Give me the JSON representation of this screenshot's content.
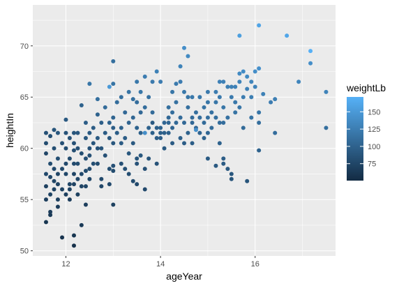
{
  "chart_data": {
    "type": "scatter",
    "xlabel": "ageYear",
    "ylabel": "heightIn",
    "xlim": [
      11.3,
      17.7
    ],
    "ylim": [
      49.5,
      74
    ],
    "x_ticks": [
      12,
      14,
      16
    ],
    "y_ticks": [
      50,
      55,
      60,
      65,
      70
    ],
    "grid": true,
    "panel_background": "#ebebeb",
    "grid_color": "#ffffff",
    "color_scale": {
      "title": "weightLb",
      "low_color": "#132b43",
      "high_color": "#56b1f7",
      "range": [
        50.5,
        171.5
      ],
      "breaks": [
        75,
        100,
        125,
        150
      ]
    },
    "legend_position": "right",
    "points": [
      {
        "x": 11.58,
        "y": 61.5,
        "w": 85
      },
      {
        "x": 11.58,
        "y": 60.5,
        "w": 80
      },
      {
        "x": 11.58,
        "y": 59.5,
        "w": 75
      },
      {
        "x": 11.58,
        "y": 57.5,
        "w": 78
      },
      {
        "x": 11.58,
        "y": 56.3,
        "w": 70
      },
      {
        "x": 11.58,
        "y": 55.0,
        "w": 68
      },
      {
        "x": 11.58,
        "y": 52.8,
        "w": 60
      },
      {
        "x": 11.67,
        "y": 61.2,
        "w": 82
      },
      {
        "x": 11.67,
        "y": 58.5,
        "w": 80
      },
      {
        "x": 11.67,
        "y": 57.2,
        "w": 76
      },
      {
        "x": 11.67,
        "y": 55.5,
        "w": 72
      },
      {
        "x": 11.67,
        "y": 53.8,
        "w": 66
      },
      {
        "x": 11.67,
        "y": 53.5,
        "w": 64
      },
      {
        "x": 11.75,
        "y": 61.8,
        "w": 88
      },
      {
        "x": 11.75,
        "y": 60.0,
        "w": 82
      },
      {
        "x": 11.75,
        "y": 58.0,
        "w": 78
      },
      {
        "x": 11.75,
        "y": 56.8,
        "w": 74
      },
      {
        "x": 11.75,
        "y": 56.0,
        "w": 72
      },
      {
        "x": 11.83,
        "y": 61.5,
        "w": 90
      },
      {
        "x": 11.83,
        "y": 59.0,
        "w": 82
      },
      {
        "x": 11.83,
        "y": 57.5,
        "w": 75
      },
      {
        "x": 11.83,
        "y": 56.5,
        "w": 72
      },
      {
        "x": 11.83,
        "y": 55.0,
        "w": 70
      },
      {
        "x": 11.83,
        "y": 54.3,
        "w": 66
      },
      {
        "x": 11.92,
        "y": 60.5,
        "w": 84
      },
      {
        "x": 11.92,
        "y": 58.0,
        "w": 78
      },
      {
        "x": 11.92,
        "y": 56.0,
        "w": 72
      },
      {
        "x": 11.92,
        "y": 51.3,
        "w": 58
      },
      {
        "x": 12.0,
        "y": 62.8,
        "w": 92
      },
      {
        "x": 12.0,
        "y": 61.5,
        "w": 86
      },
      {
        "x": 12.0,
        "y": 60.0,
        "w": 82
      },
      {
        "x": 12.0,
        "y": 58.5,
        "w": 78
      },
      {
        "x": 12.0,
        "y": 57.5,
        "w": 76
      },
      {
        "x": 12.0,
        "y": 55.5,
        "w": 70
      },
      {
        "x": 12.08,
        "y": 61.0,
        "w": 86
      },
      {
        "x": 12.08,
        "y": 59.0,
        "w": 80
      },
      {
        "x": 12.08,
        "y": 56.5,
        "w": 74
      },
      {
        "x": 12.08,
        "y": 56.0,
        "w": 72
      },
      {
        "x": 12.08,
        "y": 55.0,
        "w": 68
      },
      {
        "x": 12.17,
        "y": 61.5,
        "w": 88
      },
      {
        "x": 12.17,
        "y": 60.5,
        "w": 84
      },
      {
        "x": 12.17,
        "y": 59.8,
        "w": 82
      },
      {
        "x": 12.17,
        "y": 58.5,
        "w": 78
      },
      {
        "x": 12.17,
        "y": 57.5,
        "w": 74
      },
      {
        "x": 12.17,
        "y": 56.5,
        "w": 72
      },
      {
        "x": 12.17,
        "y": 51.5,
        "w": 60
      },
      {
        "x": 12.17,
        "y": 50.5,
        "w": 56
      },
      {
        "x": 12.25,
        "y": 61.5,
        "w": 90
      },
      {
        "x": 12.25,
        "y": 60.0,
        "w": 84
      },
      {
        "x": 12.25,
        "y": 58.5,
        "w": 80
      },
      {
        "x": 12.25,
        "y": 57.0,
        "w": 76
      },
      {
        "x": 12.25,
        "y": 55.5,
        "w": 70
      },
      {
        "x": 12.33,
        "y": 64.2,
        "w": 100
      },
      {
        "x": 12.33,
        "y": 59.5,
        "w": 82
      },
      {
        "x": 12.33,
        "y": 57.5,
        "w": 78
      },
      {
        "x": 12.33,
        "y": 56.3,
        "w": 74
      },
      {
        "x": 12.33,
        "y": 52.5,
        "w": 64
      },
      {
        "x": 12.42,
        "y": 62.5,
        "w": 96
      },
      {
        "x": 12.42,
        "y": 61.0,
        "w": 90
      },
      {
        "x": 12.42,
        "y": 59.0,
        "w": 84
      },
      {
        "x": 12.42,
        "y": 57.8,
        "w": 80
      },
      {
        "x": 12.42,
        "y": 56.3,
        "w": 74
      },
      {
        "x": 12.42,
        "y": 54.5,
        "w": 68
      },
      {
        "x": 12.5,
        "y": 66.3,
        "w": 118
      },
      {
        "x": 12.5,
        "y": 61.5,
        "w": 92
      },
      {
        "x": 12.5,
        "y": 60.0,
        "w": 86
      },
      {
        "x": 12.5,
        "y": 59.3,
        "w": 84
      },
      {
        "x": 12.5,
        "y": 58.0,
        "w": 80
      },
      {
        "x": 12.5,
        "y": 57.0,
        "w": 76
      },
      {
        "x": 12.58,
        "y": 62.0,
        "w": 95
      },
      {
        "x": 12.58,
        "y": 60.5,
        "w": 88
      },
      {
        "x": 12.58,
        "y": 58.5,
        "w": 82
      },
      {
        "x": 12.67,
        "y": 64.8,
        "w": 112
      },
      {
        "x": 12.67,
        "y": 63.3,
        "w": 100
      },
      {
        "x": 12.67,
        "y": 61.0,
        "w": 92
      },
      {
        "x": 12.67,
        "y": 60.0,
        "w": 86
      },
      {
        "x": 12.67,
        "y": 58.5,
        "w": 80
      },
      {
        "x": 12.75,
        "y": 62.5,
        "w": 96
      },
      {
        "x": 12.75,
        "y": 60.0,
        "w": 88
      },
      {
        "x": 12.75,
        "y": 57.0,
        "w": 78
      },
      {
        "x": 12.75,
        "y": 56.3,
        "w": 76
      },
      {
        "x": 12.83,
        "y": 64.0,
        "w": 108
      },
      {
        "x": 12.83,
        "y": 61.5,
        "w": 94
      },
      {
        "x": 12.83,
        "y": 59.3,
        "w": 84
      },
      {
        "x": 12.92,
        "y": 66.0,
        "w": 150
      },
      {
        "x": 12.92,
        "y": 62.5,
        "w": 100
      },
      {
        "x": 12.92,
        "y": 61.0,
        "w": 92
      },
      {
        "x": 12.92,
        "y": 58.0,
        "w": 82
      },
      {
        "x": 12.92,
        "y": 56.5,
        "w": 78
      },
      {
        "x": 13.0,
        "y": 68.5,
        "w": 112
      },
      {
        "x": 13.0,
        "y": 66.3,
        "w": 116
      },
      {
        "x": 13.0,
        "y": 63.0,
        "w": 102
      },
      {
        "x": 13.0,
        "y": 62.0,
        "w": 96
      },
      {
        "x": 13.0,
        "y": 60.5,
        "w": 90
      },
      {
        "x": 13.0,
        "y": 58.3,
        "w": 84
      },
      {
        "x": 13.0,
        "y": 57.8,
        "w": 80
      },
      {
        "x": 13.0,
        "y": 54.5,
        "w": 70
      },
      {
        "x": 13.08,
        "y": 64.5,
        "w": 110
      },
      {
        "x": 13.08,
        "y": 61.5,
        "w": 96
      },
      {
        "x": 13.17,
        "y": 65.0,
        "w": 112
      },
      {
        "x": 13.17,
        "y": 62.0,
        "w": 100
      },
      {
        "x": 13.17,
        "y": 60.5,
        "w": 94
      },
      {
        "x": 13.17,
        "y": 58.5,
        "w": 84
      },
      {
        "x": 13.25,
        "y": 63.5,
        "w": 106
      },
      {
        "x": 13.25,
        "y": 61.0,
        "w": 96
      },
      {
        "x": 13.25,
        "y": 58.0,
        "w": 84
      },
      {
        "x": 13.33,
        "y": 65.5,
        "w": 116
      },
      {
        "x": 13.33,
        "y": 62.5,
        "w": 102
      },
      {
        "x": 13.33,
        "y": 59.5,
        "w": 90
      },
      {
        "x": 13.33,
        "y": 57.5,
        "w": 82
      },
      {
        "x": 13.42,
        "y": 64.8,
        "w": 112
      },
      {
        "x": 13.42,
        "y": 63.0,
        "w": 104
      },
      {
        "x": 13.42,
        "y": 60.5,
        "w": 92
      },
      {
        "x": 13.42,
        "y": 56.8,
        "w": 80
      },
      {
        "x": 13.5,
        "y": 66.5,
        "w": 120
      },
      {
        "x": 13.5,
        "y": 64.5,
        "w": 110
      },
      {
        "x": 13.5,
        "y": 62.0,
        "w": 100
      },
      {
        "x": 13.5,
        "y": 59.0,
        "w": 88
      },
      {
        "x": 13.5,
        "y": 58.5,
        "w": 86
      },
      {
        "x": 13.5,
        "y": 56.5,
        "w": 78
      },
      {
        "x": 13.58,
        "y": 65.5,
        "w": 118
      },
      {
        "x": 13.58,
        "y": 63.5,
        "w": 106
      },
      {
        "x": 13.58,
        "y": 61.5,
        "w": 98
      },
      {
        "x": 13.58,
        "y": 59.3,
        "w": 90
      },
      {
        "x": 13.67,
        "y": 67.0,
        "w": 124
      },
      {
        "x": 13.67,
        "y": 64.0,
        "w": 110
      },
      {
        "x": 13.67,
        "y": 61.5,
        "w": 140
      },
      {
        "x": 13.67,
        "y": 58.0,
        "w": 84
      },
      {
        "x": 13.67,
        "y": 56.0,
        "w": 78
      },
      {
        "x": 13.75,
        "y": 65.0,
        "w": 114
      },
      {
        "x": 13.75,
        "y": 62.0,
        "w": 100
      },
      {
        "x": 13.75,
        "y": 59.0,
        "w": 88
      },
      {
        "x": 13.83,
        "y": 66.5,
        "w": 122
      },
      {
        "x": 13.83,
        "y": 63.5,
        "w": 108
      },
      {
        "x": 13.83,
        "y": 62.5,
        "w": 92
      },
      {
        "x": 13.83,
        "y": 61.5,
        "w": 98
      },
      {
        "x": 13.92,
        "y": 67.5,
        "w": 128
      },
      {
        "x": 13.92,
        "y": 62.0,
        "w": 98
      },
      {
        "x": 13.92,
        "y": 61.0,
        "w": 96
      },
      {
        "x": 13.92,
        "y": 58.5,
        "w": 86
      },
      {
        "x": 14.0,
        "y": 66.5,
        "w": 124
      },
      {
        "x": 14.0,
        "y": 62.0,
        "w": 100
      },
      {
        "x": 14.0,
        "y": 61.5,
        "w": 98
      },
      {
        "x": 14.0,
        "y": 61.0,
        "w": 96
      },
      {
        "x": 14.08,
        "y": 62.5,
        "w": 104
      },
      {
        "x": 14.08,
        "y": 61.5,
        "w": 98
      },
      {
        "x": 14.08,
        "y": 60.0,
        "w": 92
      },
      {
        "x": 14.17,
        "y": 64.0,
        "w": 112
      },
      {
        "x": 14.17,
        "y": 63.0,
        "w": 106
      },
      {
        "x": 14.17,
        "y": 62.5,
        "w": 104
      },
      {
        "x": 14.17,
        "y": 61.5,
        "w": 98
      },
      {
        "x": 14.25,
        "y": 65.5,
        "w": 118
      },
      {
        "x": 14.25,
        "y": 63.5,
        "w": 110
      },
      {
        "x": 14.25,
        "y": 62.0,
        "w": 102
      },
      {
        "x": 14.25,
        "y": 60.5,
        "w": 94
      },
      {
        "x": 14.33,
        "y": 66.3,
        "w": 122
      },
      {
        "x": 14.33,
        "y": 64.5,
        "w": 114
      },
      {
        "x": 14.33,
        "y": 62.5,
        "w": 106
      },
      {
        "x": 14.42,
        "y": 68.0,
        "w": 130
      },
      {
        "x": 14.42,
        "y": 66.5,
        "w": 124
      },
      {
        "x": 14.42,
        "y": 63.0,
        "w": 108
      },
      {
        "x": 14.42,
        "y": 61.0,
        "w": 98
      },
      {
        "x": 14.5,
        "y": 69.8,
        "w": 140
      },
      {
        "x": 14.5,
        "y": 65.5,
        "w": 120
      },
      {
        "x": 14.5,
        "y": 62.5,
        "w": 106
      },
      {
        "x": 14.5,
        "y": 60.5,
        "w": 96
      },
      {
        "x": 14.58,
        "y": 69.0,
        "w": 136
      },
      {
        "x": 14.58,
        "y": 65.0,
        "w": 118
      },
      {
        "x": 14.58,
        "y": 64.0,
        "w": 112
      },
      {
        "x": 14.58,
        "y": 61.5,
        "w": 100
      },
      {
        "x": 14.67,
        "y": 65.0,
        "w": 120
      },
      {
        "x": 14.67,
        "y": 63.0,
        "w": 108
      },
      {
        "x": 14.67,
        "y": 62.5,
        "w": 106
      },
      {
        "x": 14.67,
        "y": 60.5,
        "w": 96
      },
      {
        "x": 14.75,
        "y": 62.0,
        "w": 104
      },
      {
        "x": 14.75,
        "y": 61.8,
        "w": 142
      },
      {
        "x": 14.75,
        "y": 63.5,
        "w": 112
      },
      {
        "x": 14.83,
        "y": 65.0,
        "w": 120
      },
      {
        "x": 14.83,
        "y": 63.0,
        "w": 110
      },
      {
        "x": 14.83,
        "y": 61.5,
        "w": 102
      },
      {
        "x": 14.92,
        "y": 64.0,
        "w": 116
      },
      {
        "x": 14.92,
        "y": 62.5,
        "w": 108
      },
      {
        "x": 14.92,
        "y": 61.0,
        "w": 100
      },
      {
        "x": 15.0,
        "y": 65.5,
        "w": 122
      },
      {
        "x": 15.0,
        "y": 64.5,
        "w": 118
      },
      {
        "x": 15.0,
        "y": 63.0,
        "w": 112
      },
      {
        "x": 15.0,
        "y": 61.5,
        "w": 104
      },
      {
        "x": 15.0,
        "y": 59.0,
        "w": 94
      },
      {
        "x": 15.08,
        "y": 63.5,
        "w": 114
      },
      {
        "x": 15.08,
        "y": 62.0,
        "w": 108
      },
      {
        "x": 15.17,
        "y": 65.5,
        "w": 124
      },
      {
        "x": 15.17,
        "y": 64.5,
        "w": 118
      },
      {
        "x": 15.17,
        "y": 63.0,
        "w": 112
      },
      {
        "x": 15.17,
        "y": 58.3,
        "w": 92
      },
      {
        "x": 15.25,
        "y": 66.5,
        "w": 128
      },
      {
        "x": 15.25,
        "y": 65.0,
        "w": 122
      },
      {
        "x": 15.25,
        "y": 62.5,
        "w": 110
      },
      {
        "x": 15.25,
        "y": 60.5,
        "w": 100
      },
      {
        "x": 15.33,
        "y": 66.5,
        "w": 128
      },
      {
        "x": 15.33,
        "y": 64.0,
        "w": 118
      },
      {
        "x": 15.33,
        "y": 62.5,
        "w": 110
      },
      {
        "x": 15.33,
        "y": 59.0,
        "w": 96
      },
      {
        "x": 15.33,
        "y": 58.5,
        "w": 94
      },
      {
        "x": 15.42,
        "y": 66.0,
        "w": 126
      },
      {
        "x": 15.42,
        "y": 63.0,
        "w": 114
      },
      {
        "x": 15.42,
        "y": 58.0,
        "w": 92
      },
      {
        "x": 15.5,
        "y": 66.0,
        "w": 128
      },
      {
        "x": 15.5,
        "y": 65.0,
        "w": 122
      },
      {
        "x": 15.5,
        "y": 57.5,
        "w": 90
      },
      {
        "x": 15.5,
        "y": 57.0,
        "w": 88
      },
      {
        "x": 15.58,
        "y": 66.0,
        "w": 128
      },
      {
        "x": 15.58,
        "y": 64.5,
        "w": 120
      },
      {
        "x": 15.58,
        "y": 63.5,
        "w": 116
      },
      {
        "x": 15.67,
        "y": 71.0,
        "w": 155
      },
      {
        "x": 15.67,
        "y": 67.3,
        "w": 136
      },
      {
        "x": 15.67,
        "y": 66.5,
        "w": 130
      },
      {
        "x": 15.67,
        "y": 64.0,
        "w": 118
      },
      {
        "x": 15.75,
        "y": 67.5,
        "w": 138
      },
      {
        "x": 15.75,
        "y": 65.0,
        "w": 124
      },
      {
        "x": 15.75,
        "y": 62.0,
        "w": 108
      },
      {
        "x": 15.83,
        "y": 67.0,
        "w": 136
      },
      {
        "x": 15.83,
        "y": 65.8,
        "w": 128
      },
      {
        "x": 15.83,
        "y": 56.8,
        "w": 88
      },
      {
        "x": 15.92,
        "y": 66.5,
        "w": 132
      },
      {
        "x": 15.92,
        "y": 65.0,
        "w": 126
      },
      {
        "x": 15.92,
        "y": 63.0,
        "w": 116
      },
      {
        "x": 16.0,
        "y": 67.5,
        "w": 140
      },
      {
        "x": 16.0,
        "y": 66.0,
        "w": 130
      },
      {
        "x": 16.08,
        "y": 72.0,
        "w": 160
      },
      {
        "x": 16.08,
        "y": 67.8,
        "w": 142
      },
      {
        "x": 16.08,
        "y": 63.5,
        "w": 118
      },
      {
        "x": 16.08,
        "y": 62.5,
        "w": 112
      },
      {
        "x": 16.08,
        "y": 59.8,
        "w": 100
      },
      {
        "x": 16.17,
        "y": 65.3,
        "w": 128
      },
      {
        "x": 16.33,
        "y": 64.5,
        "w": 124
      },
      {
        "x": 16.42,
        "y": 64.8,
        "w": 126
      },
      {
        "x": 16.42,
        "y": 61.5,
        "w": 110
      },
      {
        "x": 16.67,
        "y": 71.0,
        "w": 162
      },
      {
        "x": 16.92,
        "y": 66.5,
        "w": 132
      },
      {
        "x": 17.17,
        "y": 69.5,
        "w": 171
      },
      {
        "x": 17.17,
        "y": 68.3,
        "w": 140
      },
      {
        "x": 17.5,
        "y": 65.5,
        "w": 130
      },
      {
        "x": 17.5,
        "y": 62.0,
        "w": 112
      }
    ]
  }
}
